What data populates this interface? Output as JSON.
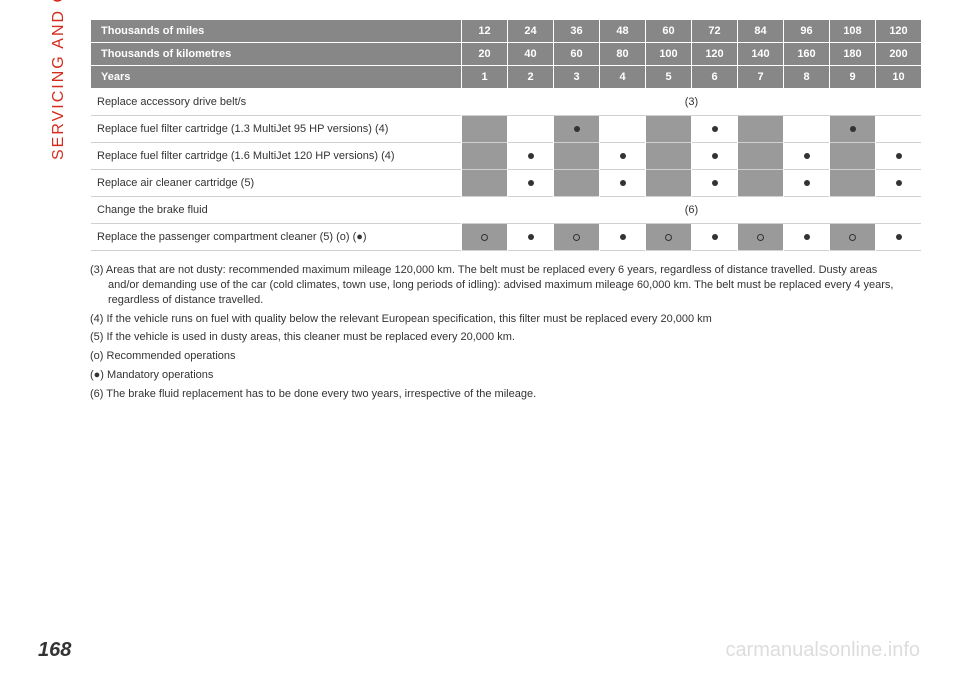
{
  "side_label": "SERVICING AND CARE",
  "side_color": "#d52b1e",
  "page_number": "168",
  "watermark": "carmanualsonline.info",
  "header_bg": "#878787",
  "header_fg": "#ffffff",
  "stripe_odd_bg": "#9a9a9a",
  "stripe_even_bg": "#ffffff",
  "table": {
    "headers": [
      {
        "label": "Thousands of miles",
        "vals": [
          "12",
          "24",
          "36",
          "48",
          "60",
          "72",
          "84",
          "96",
          "108",
          "120"
        ]
      },
      {
        "label": "Thousands of kilometres",
        "vals": [
          "20",
          "40",
          "60",
          "80",
          "100",
          "120",
          "140",
          "160",
          "180",
          "200"
        ]
      },
      {
        "label": "Years",
        "vals": [
          "1",
          "2",
          "3",
          "4",
          "5",
          "6",
          "7",
          "8",
          "9",
          "10"
        ]
      }
    ],
    "rows": [
      {
        "desc": "Replace accessory drive belt/s",
        "type": "note",
        "note": "(3)"
      },
      {
        "desc": "Replace fuel filter cartridge (1.3 MultiJet 95 HP versions) (4)",
        "type": "marks",
        "marks": [
          "",
          "",
          "●",
          "",
          "",
          "●",
          "",
          "",
          "●",
          ""
        ]
      },
      {
        "desc": "Replace fuel filter cartridge (1.6 MultiJet 120 HP versions) (4)",
        "type": "marks",
        "marks": [
          "",
          "●",
          "",
          "●",
          "",
          "●",
          "",
          "●",
          "",
          "●"
        ]
      },
      {
        "desc": "Replace air cleaner cartridge (5)",
        "type": "marks",
        "marks": [
          "",
          "●",
          "",
          "●",
          "",
          "●",
          "",
          "●",
          "",
          "●"
        ]
      },
      {
        "desc": "Change the brake fluid",
        "type": "note",
        "note": "(6)"
      },
      {
        "desc": "Replace the passenger compartment cleaner (5) (o) (●)",
        "type": "marks",
        "marks": [
          "○",
          "●",
          "○",
          "●",
          "○",
          "●",
          "○",
          "●",
          "○",
          "●"
        ]
      }
    ]
  },
  "footnotes": [
    "(3) Areas that are not dusty: recommended maximum mileage 120,000 km. The belt must be replaced every 6 years, regardless of distance travelled. Dusty areas and/or demanding use of the car (cold climates, town use, long periods of idling): advised maximum mileage 60,000 km. The belt must be replaced every 4 years, regardless of distance travelled.",
    "(4) If the vehicle runs on fuel with quality below the relevant European specification, this filter must be replaced every 20,000 km",
    "(5) If the vehicle is used in dusty areas, this cleaner must be replaced every 20,000 km.",
    "(o) Recommended operations",
    "(●) Mandatory operations",
    "(6) The brake fluid replacement has to be done every two years, irrespective of the mileage."
  ]
}
